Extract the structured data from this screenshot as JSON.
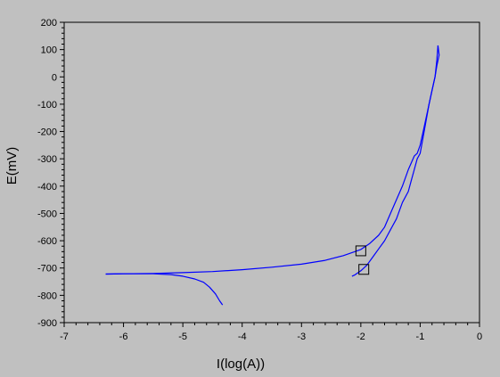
{
  "chart_data": {
    "type": "line",
    "title": "",
    "xlabel": "I(log(A))",
    "ylabel": "E(mV)",
    "xlim": [
      -7,
      0
    ],
    "ylim": [
      -900,
      200
    ],
    "x_ticks": [
      -7,
      -6,
      -5,
      -4,
      -3,
      -2,
      -1,
      0
    ],
    "y_ticks": [
      -900,
      -800,
      -700,
      -600,
      -500,
      -400,
      -300,
      -200,
      -100,
      0,
      100,
      200
    ],
    "grid": false,
    "colors": {
      "background": "#c0c0c0",
      "plot_area": "#c0c0c0",
      "series": "#0000ff",
      "axes": "#000000"
    },
    "series": [
      {
        "name": "",
        "points": [
          [
            -6.3,
            -722
          ],
          [
            -6.0,
            -721
          ],
          [
            -5.5,
            -720
          ],
          [
            -5.0,
            -717
          ],
          [
            -4.5,
            -713
          ],
          [
            -4.0,
            -706
          ],
          [
            -3.5,
            -697
          ],
          [
            -3.0,
            -686
          ],
          [
            -2.6,
            -672
          ],
          [
            -2.3,
            -655
          ],
          [
            -2.1,
            -640
          ],
          [
            -2.0,
            -632
          ],
          [
            -1.85,
            -610
          ],
          [
            -1.7,
            -580
          ],
          [
            -1.6,
            -550
          ],
          [
            -1.5,
            -500
          ],
          [
            -1.4,
            -450
          ],
          [
            -1.3,
            -400
          ],
          [
            -1.2,
            -340
          ],
          [
            -1.1,
            -290
          ],
          [
            -1.05,
            -280
          ],
          [
            -1.0,
            -250
          ],
          [
            -0.95,
            -200
          ],
          [
            -0.9,
            -150
          ],
          [
            -0.85,
            -100
          ],
          [
            -0.8,
            -50
          ],
          [
            -0.75,
            0
          ],
          [
            -0.72,
            60
          ],
          [
            -0.7,
            115
          ]
        ]
      },
      {
        "name": "",
        "points": [
          [
            -0.7,
            115
          ],
          [
            -0.68,
            80
          ],
          [
            -0.72,
            40
          ],
          [
            -0.75,
            0
          ],
          [
            -0.8,
            -50
          ],
          [
            -0.85,
            -100
          ],
          [
            -0.9,
            -160
          ],
          [
            -0.95,
            -220
          ],
          [
            -1.0,
            -280
          ],
          [
            -1.05,
            -300
          ],
          [
            -1.1,
            -340
          ],
          [
            -1.15,
            -380
          ],
          [
            -1.2,
            -420
          ],
          [
            -1.3,
            -460
          ],
          [
            -1.4,
            -520
          ],
          [
            -1.5,
            -560
          ],
          [
            -1.6,
            -600
          ],
          [
            -1.7,
            -630
          ],
          [
            -1.8,
            -660
          ],
          [
            -1.9,
            -690
          ],
          [
            -2.0,
            -710
          ],
          [
            -2.1,
            -725
          ],
          [
            -2.15,
            -730
          ]
        ]
      },
      {
        "name": "",
        "points": [
          [
            -6.3,
            -722
          ],
          [
            -6.0,
            -721
          ],
          [
            -5.5,
            -721
          ],
          [
            -5.2,
            -724
          ],
          [
            -5.0,
            -730
          ],
          [
            -4.8,
            -740
          ],
          [
            -4.65,
            -752
          ],
          [
            -4.55,
            -770
          ],
          [
            -4.45,
            -795
          ],
          [
            -4.38,
            -820
          ],
          [
            -4.33,
            -835
          ]
        ]
      }
    ],
    "markers": [
      {
        "shape": "square",
        "x": -2.0,
        "y": -637
      },
      {
        "shape": "square",
        "x": -1.95,
        "y": -705
      }
    ]
  }
}
